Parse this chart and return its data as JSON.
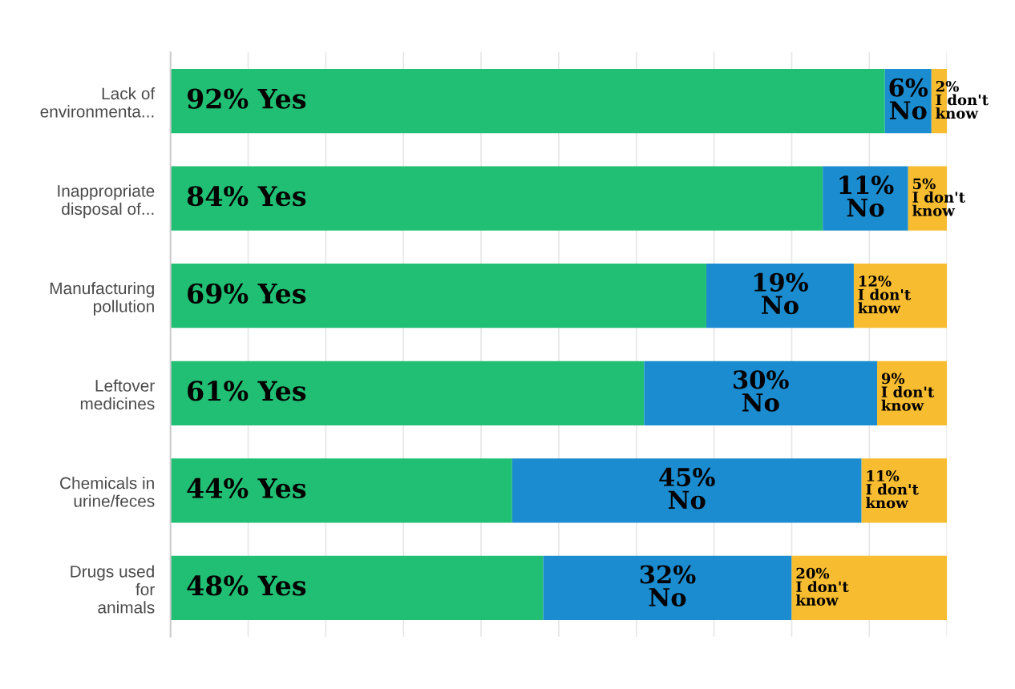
{
  "chart_data": {
    "type": "bar",
    "orientation": "horizontal",
    "stacked": true,
    "categories": [
      "Lack of\nenvironmenta...",
      "Inappropriate\ndisposal of...",
      "Manufacturing\npollution",
      "Leftover\nmedicines",
      "Chemicals in\nurine/feces",
      "Drugs used\nfor\nanimals"
    ],
    "series": [
      {
        "color": "#21bf73",
        "values": [
          92,
          84,
          69,
          61,
          44,
          48
        ],
        "value_labels": [
          "92% Yes",
          "84% Yes",
          "69% Yes",
          "61% Yes",
          "44% Yes",
          "48% Yes"
        ]
      },
      {
        "color": "#1b8ccf",
        "values": [
          6,
          11,
          19,
          30,
          45,
          32
        ],
        "value_labels": [
          "6%\nNo",
          "11%\nNo",
          "19%\nNo",
          "30%\nNo",
          "45%\nNo",
          "32%\nNo"
        ]
      },
      {
        "color": "#f7bc2f",
        "values": [
          2,
          5,
          12,
          9,
          11,
          20
        ],
        "value_labels": [
          "2%\nI don't\nknow",
          "5%\nI don't\nknow",
          "12%\nI don't\nknow",
          "9%\nI don't\nknow",
          "11%\nI don't\nknow",
          "20%\nI don't\nknow"
        ]
      }
    ],
    "xlim": [
      0,
      100
    ],
    "xticks": [
      {
        "value": 0,
        "label": null
      },
      {
        "value": 10,
        "label": null
      },
      {
        "value": 20,
        "label": null
      },
      {
        "value": 30,
        "label": null
      },
      {
        "value": 40,
        "label": null
      },
      {
        "value": 50,
        "label": null
      },
      {
        "value": 60,
        "label": null
      },
      {
        "value": 70,
        "label": null
      },
      {
        "value": 80,
        "label": null
      },
      {
        "value": 90,
        "label": null
      },
      {
        "value": 100,
        "label": null
      }
    ],
    "grid": "x",
    "tick_labels": "y",
    "legend": false
  }
}
